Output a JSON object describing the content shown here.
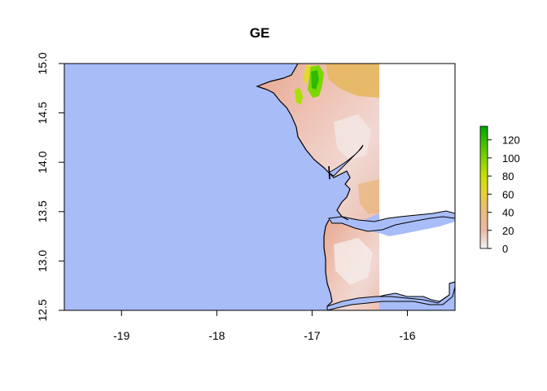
{
  "title": "GE",
  "colors": {
    "water": "#a8bcf8",
    "land_low": "#f2f2f2",
    "land_mid": "#ebb0a0",
    "land_high": "#e3b84e",
    "green": "#7bd800",
    "dark_green": "#00a600",
    "coast": "#000000"
  },
  "map_extent": {
    "lon_min": -19.6,
    "lon_max": -15.5,
    "lat_min": 12.5,
    "lat_max": 15.0,
    "raster_lon_max": -16.27
  },
  "x_ticks": [
    {
      "value": -19,
      "label": "-19"
    },
    {
      "value": -18,
      "label": "-18"
    },
    {
      "value": -17,
      "label": "-17"
    },
    {
      "value": -16,
      "label": "-16"
    }
  ],
  "y_ticks": [
    {
      "value": 15.0,
      "label": "15.0"
    },
    {
      "value": 14.5,
      "label": "14.5"
    },
    {
      "value": 14.0,
      "label": "14.0"
    },
    {
      "value": 13.5,
      "label": "13.5"
    },
    {
      "value": 13.0,
      "label": "13.0"
    },
    {
      "value": 12.5,
      "label": "12.5"
    }
  ],
  "legend": {
    "min": 0,
    "max": 135,
    "ticks": [
      {
        "value": 0,
        "label": "0"
      },
      {
        "value": 20,
        "label": "20"
      },
      {
        "value": 40,
        "label": "40"
      },
      {
        "value": 60,
        "label": "60"
      },
      {
        "value": 80,
        "label": "80"
      },
      {
        "value": 100,
        "label": "100"
      },
      {
        "value": 120,
        "label": "120"
      }
    ]
  }
}
